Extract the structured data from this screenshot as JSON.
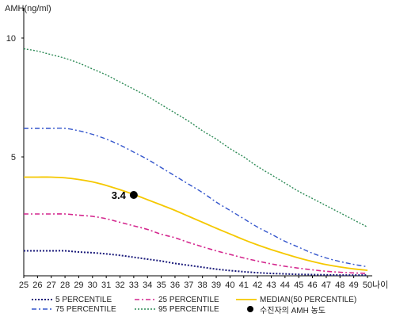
{
  "chart_data": {
    "type": "line",
    "ylabel": "AMH(ng/ml)",
    "xlabel": "나이",
    "xlim": [
      25,
      50
    ],
    "ylim": [
      0,
      11
    ],
    "yticks": [
      5,
      10
    ],
    "x": [
      25,
      26,
      27,
      28,
      29,
      30,
      31,
      32,
      33,
      34,
      35,
      36,
      37,
      38,
      39,
      40,
      41,
      42,
      43,
      44,
      45,
      46,
      47,
      48,
      49,
      50
    ],
    "series": [
      {
        "name": "5 PERCENTILE",
        "color": "#1a1a7a",
        "dash": "2,2",
        "width": 2,
        "values": [
          1.05,
          1.05,
          1.05,
          1.05,
          1.0,
          0.97,
          0.92,
          0.86,
          0.78,
          0.7,
          0.62,
          0.52,
          0.44,
          0.36,
          0.28,
          0.22,
          0.17,
          0.13,
          0.1,
          0.08,
          0.06,
          0.05,
          0.04,
          0.03,
          0.03,
          0.03
        ]
      },
      {
        "name": "75 PERCENTILE",
        "color": "#3355cc",
        "dash": "6,3,2,3",
        "width": 1.4,
        "values": [
          6.2,
          6.2,
          6.2,
          6.2,
          6.1,
          5.95,
          5.75,
          5.5,
          5.2,
          4.9,
          4.55,
          4.2,
          3.85,
          3.5,
          3.1,
          2.75,
          2.4,
          2.05,
          1.75,
          1.45,
          1.2,
          0.95,
          0.75,
          0.6,
          0.48,
          0.38
        ]
      },
      {
        "name": "25 PERCENTILE",
        "color": "#d4278e",
        "dash": "6,3,2,3",
        "width": 1.6,
        "values": [
          2.6,
          2.6,
          2.6,
          2.6,
          2.55,
          2.5,
          2.4,
          2.25,
          2.1,
          1.95,
          1.75,
          1.6,
          1.4,
          1.22,
          1.05,
          0.9,
          0.75,
          0.62,
          0.5,
          0.4,
          0.32,
          0.25,
          0.19,
          0.15,
          0.12,
          0.1
        ]
      },
      {
        "name": "95 PERCENTILE",
        "color": "#2e8b57",
        "dash": "2,2",
        "width": 1.4,
        "values": [
          9.55,
          9.45,
          9.3,
          9.15,
          8.95,
          8.7,
          8.45,
          8.15,
          7.85,
          7.55,
          7.2,
          6.85,
          6.5,
          6.1,
          5.75,
          5.35,
          5.0,
          4.6,
          4.25,
          3.9,
          3.55,
          3.25,
          2.95,
          2.65,
          2.35,
          2.05
        ]
      },
      {
        "name": "MEDIAN(50 PERCENTILE)",
        "color": "#f5c800",
        "dash": "",
        "width": 1.8,
        "values": [
          4.15,
          4.15,
          4.15,
          4.12,
          4.05,
          3.95,
          3.8,
          3.62,
          3.42,
          3.2,
          2.98,
          2.75,
          2.5,
          2.25,
          2.0,
          1.76,
          1.52,
          1.3,
          1.1,
          0.92,
          0.75,
          0.6,
          0.47,
          0.37,
          0.29,
          0.23
        ]
      }
    ],
    "points": [
      {
        "name": "수진자의 AMH 농도",
        "x": 33,
        "y": 3.4,
        "label": "3.4",
        "color": "#000000"
      }
    ],
    "legend_position": "bottom",
    "grid": false
  },
  "legend": {
    "items": [
      {
        "label": "5 PERCENTILE"
      },
      {
        "label": "25 PERCENTILE"
      },
      {
        "label": "MEDIAN(50 PERCENTILE)"
      },
      {
        "label": "75 PERCENTILE"
      },
      {
        "label": "95 PERCENTILE"
      },
      {
        "label": "수진자의 AMH 농도"
      }
    ]
  }
}
